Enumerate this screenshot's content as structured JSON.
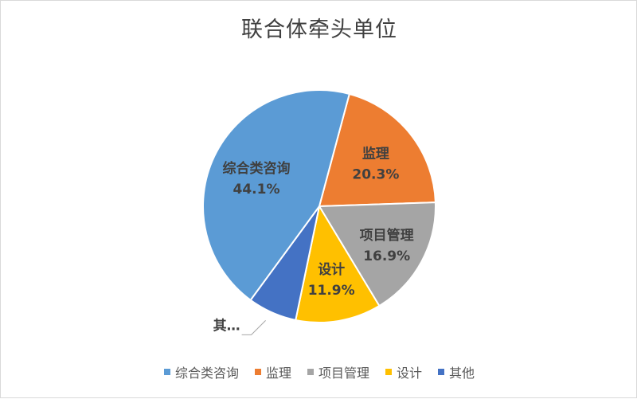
{
  "chart_data": {
    "type": "pie",
    "title": "联合体牵头单位",
    "slices": [
      {
        "name": "综合类咨询",
        "value": 44.1,
        "label": "44.1%",
        "color": "#5B9BD5"
      },
      {
        "name": "监理",
        "value": 20.3,
        "label": "20.3%",
        "color": "#ED7D31"
      },
      {
        "name": "项目管理",
        "value": 16.9,
        "label": "16.9%",
        "color": "#A5A5A5"
      },
      {
        "name": "设计",
        "value": 11.9,
        "label": "11.9%",
        "color": "#FFC000"
      },
      {
        "name": "其他",
        "value": 6.8,
        "label": "",
        "color": "#4472C4"
      }
    ],
    "outside_label": "其…",
    "legend_position": "bottom",
    "legend": [
      "综合类咨询",
      "监理",
      "项目管理",
      "设计",
      "其他"
    ]
  }
}
